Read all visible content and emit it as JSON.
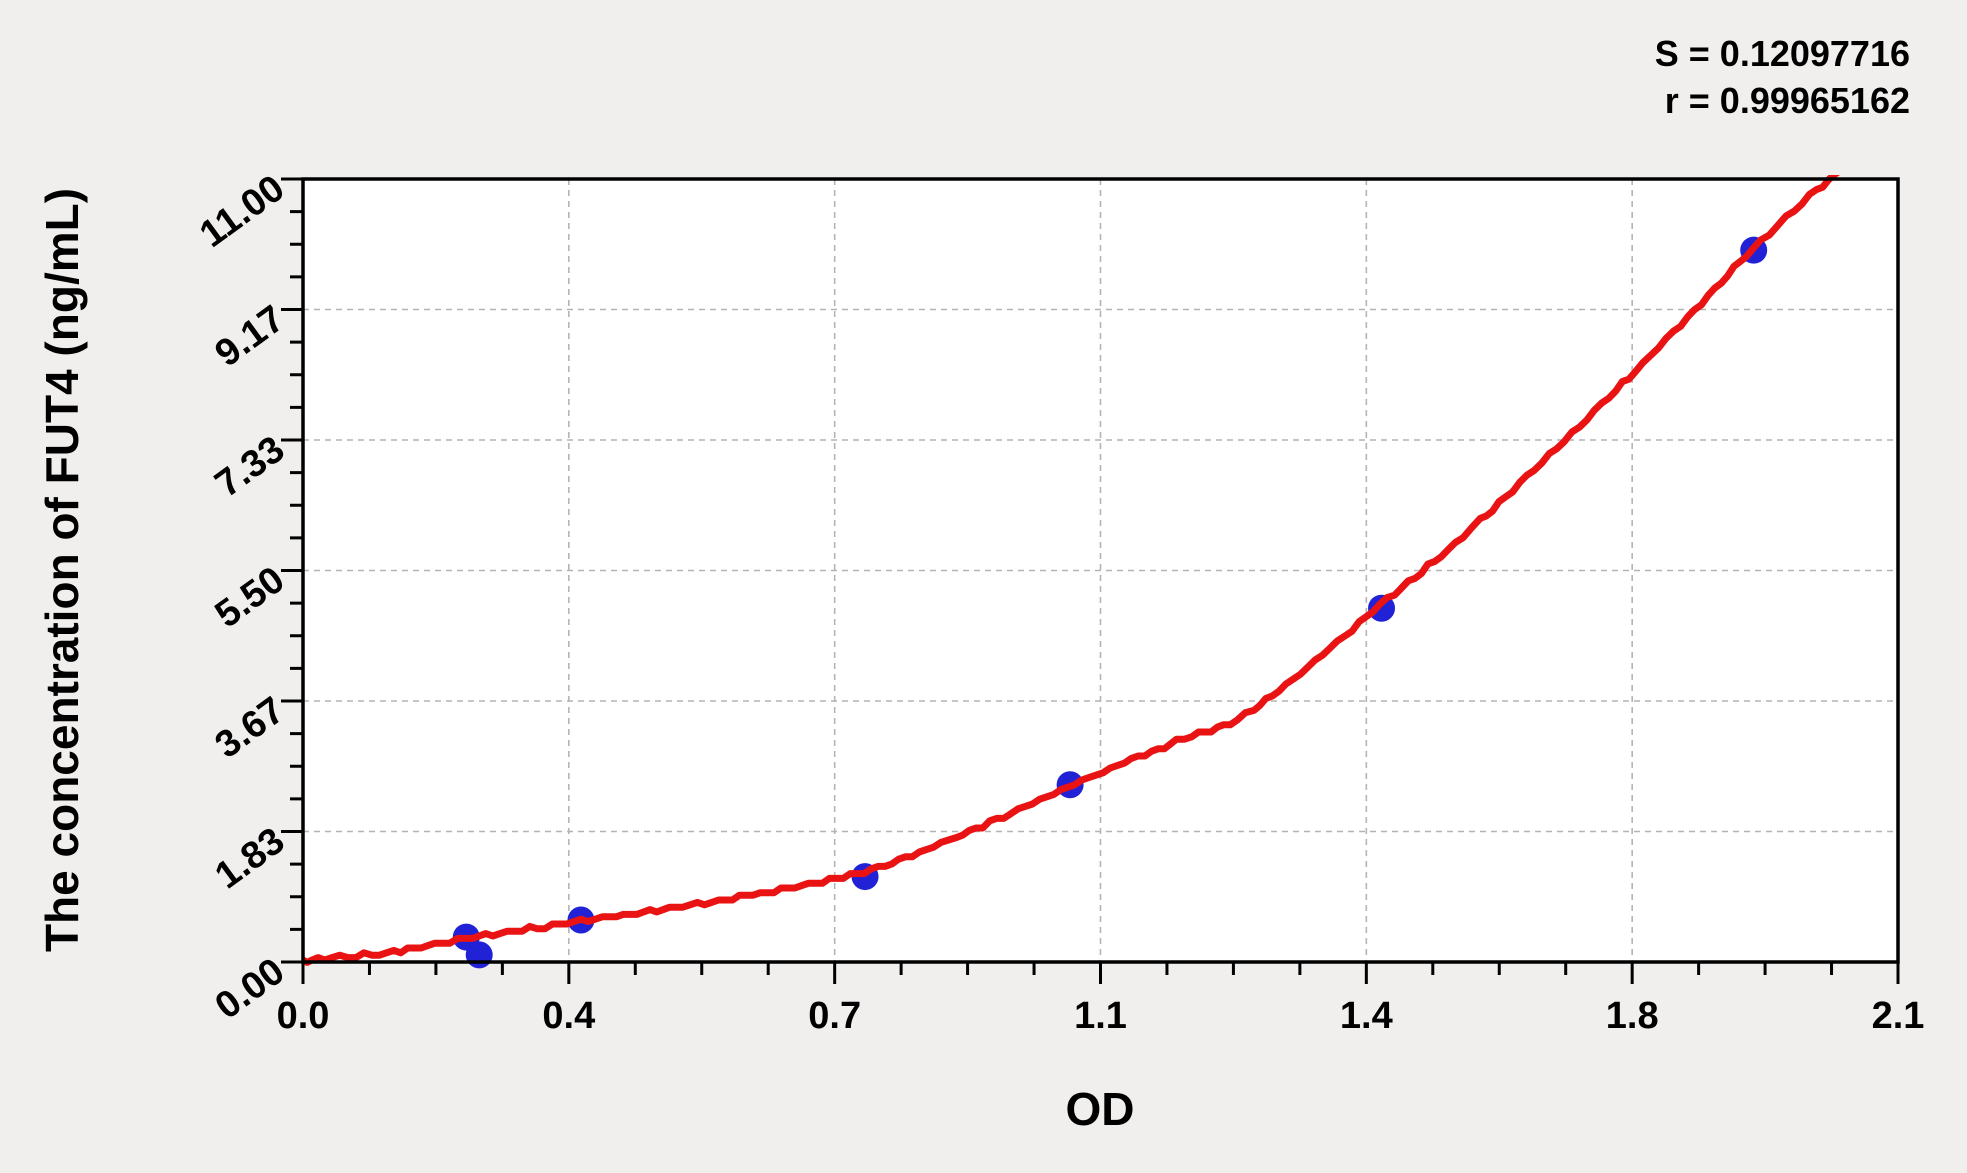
{
  "stats": {
    "line1": "S = 0.12097716",
    "line2": "r = 0.99965162"
  },
  "chart_data": {
    "type": "scatter",
    "title": "",
    "xlabel": "OD",
    "ylabel": "The concentration of FUT4 (ng/mL)",
    "xlim": [
      0,
      2.1
    ],
    "ylim": [
      0,
      11
    ],
    "x_major_tick_values": [
      0,
      0.35,
      0.7,
      1.05,
      1.4,
      1.75,
      2.1
    ],
    "x_tick_labels": [
      "0.0",
      "0.4",
      "0.7",
      "1.1",
      "1.4",
      "1.8",
      "2.1"
    ],
    "y_major_tick_values": [
      0,
      1.8333,
      3.6667,
      5.5,
      7.3333,
      9.1667,
      11
    ],
    "y_tick_labels": [
      "0.00",
      "1.83",
      "3.67",
      "5.50",
      "7.33",
      "9.17",
      "11.00"
    ],
    "x_minor_divisions_per_major": 4,
    "y_minor_divisions_per_major": 4,
    "grid": "dashed gray lines at interior major ticks, both axes",
    "legend_position": "none",
    "points": [
      {
        "x": 0.215,
        "y": 0.35
      },
      {
        "x": 0.232,
        "y": 0.1
      },
      {
        "x": 0.366,
        "y": 0.59
      },
      {
        "x": 0.74,
        "y": 1.2
      },
      {
        "x": 1.01,
        "y": 2.49
      },
      {
        "x": 1.42,
        "y": 4.97
      },
      {
        "x": 1.91,
        "y": 10.0
      }
    ],
    "fit_curve_samples": [
      {
        "x": 0.0,
        "y": 0.02
      },
      {
        "x": 0.11,
        "y": 0.13
      },
      {
        "x": 0.215,
        "y": 0.33
      },
      {
        "x": 0.366,
        "y": 0.57
      },
      {
        "x": 0.5,
        "y": 0.78
      },
      {
        "x": 0.62,
        "y": 1.0
      },
      {
        "x": 0.739,
        "y": 1.27
      },
      {
        "x": 0.86,
        "y": 1.75
      },
      {
        "x": 1.007,
        "y": 2.46
      },
      {
        "x": 1.15,
        "y": 3.1
      },
      {
        "x": 1.252,
        "y": 3.55
      },
      {
        "x": 1.417,
        "y": 5.0
      },
      {
        "x": 1.55,
        "y": 6.2
      },
      {
        "x": 1.754,
        "y": 8.3
      },
      {
        "x": 1.908,
        "y": 10.0
      },
      {
        "x": 2.02,
        "y": 11.1
      }
    ],
    "colors": {
      "points": "#2121d6",
      "curve": "#ea1313",
      "grid": "#b4b4b4",
      "frame": "#000000",
      "plot_bg": "#ffffff",
      "page_bg": "#f0efee"
    }
  }
}
